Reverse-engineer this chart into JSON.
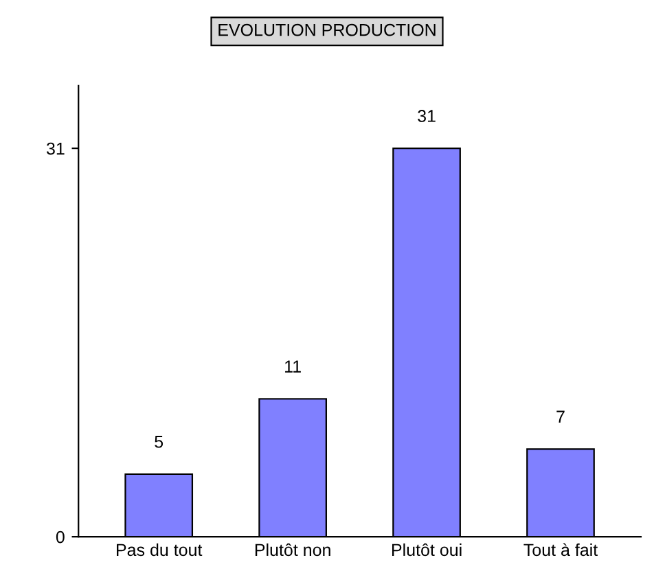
{
  "chart_data": {
    "type": "bar",
    "title": "EVOLUTION PRODUCTION",
    "categories": [
      "Pas du tout",
      "Plutôt non",
      "Plutôt oui",
      "Tout à fait"
    ],
    "values": [
      5,
      11,
      31,
      7
    ],
    "color": "#8080ff",
    "ylim": [
      0,
      36
    ],
    "yticks": [
      0,
      31
    ],
    "data_labels": true,
    "grid": false,
    "legend": false
  }
}
